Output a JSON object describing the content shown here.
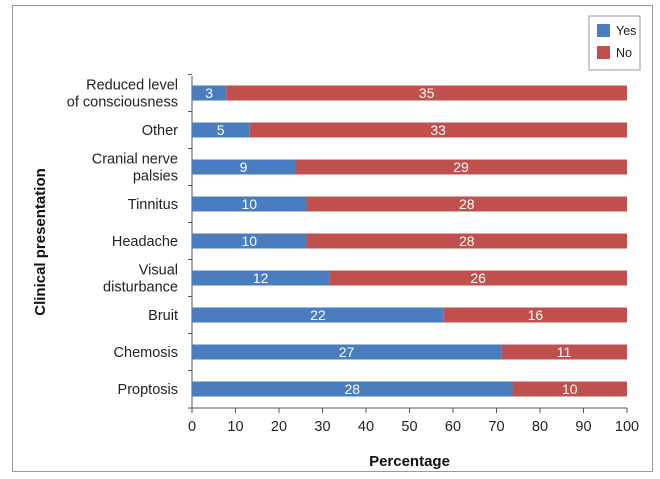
{
  "chart_data": {
    "type": "bar",
    "orientation": "horizontal",
    "stacked": true,
    "categories": [
      [
        "Reduced level",
        "of consciousness"
      ],
      [
        "Other"
      ],
      [
        "Cranial nerve",
        "palsies"
      ],
      [
        "Tinnitus"
      ],
      [
        "Headache"
      ],
      [
        "Visual",
        "disturbance"
      ],
      [
        "Bruit"
      ],
      [
        "Chemosis"
      ],
      [
        "Proptosis"
      ]
    ],
    "series": [
      {
        "name": "Yes",
        "color": "#4a7cc0",
        "values": [
          3,
          5,
          9,
          10,
          10,
          12,
          22,
          27,
          28
        ]
      },
      {
        "name": "No",
        "color": "#c0504d",
        "values": [
          35,
          33,
          29,
          28,
          28,
          26,
          16,
          11,
          10
        ]
      }
    ],
    "xlabel": "Percentage",
    "ylabel": "Clinical presentation",
    "xlim": [
      0,
      100
    ],
    "xticks": [
      0,
      10,
      20,
      30,
      40,
      50,
      60,
      70,
      80,
      90,
      100
    ],
    "grid": false,
    "legend_position": "top-right"
  }
}
